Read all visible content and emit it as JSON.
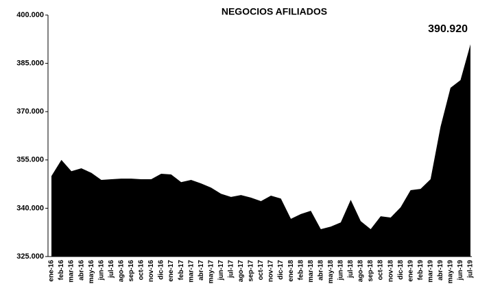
{
  "chart_data": {
    "type": "area",
    "title": "NEGOCIOS AFILIADOS",
    "color": "#000000",
    "categories": [
      "ene-16",
      "feb-16",
      "mar-16",
      "abr-16",
      "may-16",
      "jun-16",
      "jul-16",
      "ago-16",
      "sep-16",
      "oct-16",
      "nov-16",
      "dic-16",
      "ene-17",
      "feb-17",
      "mar-17",
      "abr-17",
      "may-17",
      "jun-17",
      "jul-17",
      "ago-17",
      "sep-17",
      "oct-17",
      "nov-17",
      "dic-17",
      "ene-18",
      "feb-18",
      "mar-18",
      "abr-18",
      "may-18",
      "jun-18",
      "jul-18",
      "ago-18",
      "sep-18",
      "oct-18",
      "nov-18",
      "dic-18",
      "ene-19",
      "feb-19",
      "mar-19",
      "abr-19",
      "may-19",
      "jun-19",
      "jul-19"
    ],
    "values": [
      350000,
      355000,
      351500,
      352400,
      351000,
      348800,
      349000,
      349200,
      349200,
      349000,
      349000,
      350700,
      350500,
      348100,
      348800,
      347700,
      346400,
      344500,
      343500,
      344100,
      343300,
      342200,
      343900,
      343000,
      336700,
      338200,
      339200,
      333500,
      334300,
      335600,
      342600,
      336000,
      333500,
      337500,
      337100,
      340300,
      345600,
      346000,
      349000,
      365300,
      377400,
      379800,
      390920
    ],
    "value_labels": [
      null,
      null,
      null,
      null,
      null,
      null,
      null,
      null,
      null,
      null,
      null,
      null,
      null,
      null,
      null,
      null,
      null,
      null,
      null,
      null,
      null,
      null,
      null,
      null,
      null,
      null,
      null,
      null,
      null,
      null,
      null,
      null,
      null,
      null,
      null,
      null,
      null,
      null,
      null,
      null,
      null,
      null,
      "390.920"
    ],
    "ylim": [
      325000,
      400000
    ],
    "yticks": [
      {
        "value": 325000,
        "label": "325.000"
      },
      {
        "value": 340000,
        "label": "340.000"
      },
      {
        "value": 355000,
        "label": "355.000"
      },
      {
        "value": 370000,
        "label": "370.000"
      },
      {
        "value": 385000,
        "label": "385.000"
      },
      {
        "value": 400000,
        "label": "400.000"
      }
    ],
    "grid": false
  }
}
